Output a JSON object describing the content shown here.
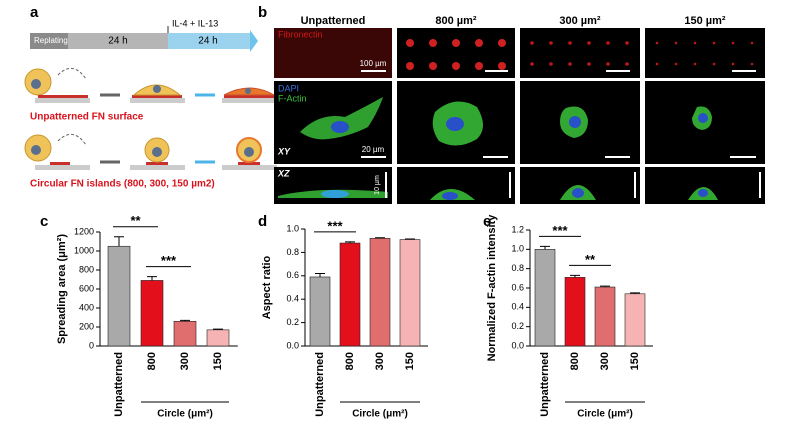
{
  "panel_a": {
    "label": "a",
    "timeline": [
      "Replating",
      "24 h",
      "24 h"
    ],
    "treatment": "IL-4 + IL-13",
    "captions": [
      "Unpatterned FN surface",
      "Circular FN islands (800, 300, 150 µm2)"
    ]
  },
  "panel_b": {
    "label": "b",
    "columns": [
      "Unpatterned",
      "800 µm²",
      "300 µm²",
      "150 µm²"
    ],
    "stains": [
      "Fibronectin",
      "DAPI",
      "F-Actin"
    ],
    "views": [
      "XY",
      "XZ"
    ],
    "scale_bars": [
      "100 µm",
      "20 µm",
      "10 µm"
    ]
  },
  "chart_data": [
    {
      "type": "bar",
      "panel_label": "c",
      "ylabel": "Spreading area (μm²)",
      "xlabel": "Circle (μm²)",
      "categories": [
        "Unpatterned",
        "800",
        "300",
        "150"
      ],
      "values": [
        1050,
        690,
        260,
        170
      ],
      "errors": [
        100,
        40,
        10,
        8
      ],
      "colors": [
        "#a9a9a9",
        "#e3101c",
        "#e06e6e",
        "#f6b3b3"
      ],
      "ylim": [
        0,
        1200
      ],
      "yticks": [
        0,
        200,
        400,
        600,
        800,
        1000,
        1200
      ],
      "annotations": [
        "**",
        "***"
      ]
    },
    {
      "type": "bar",
      "panel_label": "d",
      "ylabel": "Aspect ratio",
      "xlabel": "Circle (μm²)",
      "categories": [
        "Unpatterned",
        "800",
        "300",
        "150"
      ],
      "values": [
        0.59,
        0.88,
        0.92,
        0.91
      ],
      "errors": [
        0.03,
        0.01,
        0.005,
        0.005
      ],
      "colors": [
        "#a9a9a9",
        "#e3101c",
        "#e06e6e",
        "#f6b3b3"
      ],
      "ylim": [
        0,
        1.0
      ],
      "yticks": [
        {
          "value": 0,
          "label": "0.0"
        },
        0.2,
        0.4,
        0.6,
        0.8,
        {
          "value": 1,
          "label": "1.0"
        }
      ],
      "annotations": [
        "***"
      ]
    },
    {
      "type": "bar",
      "panel_label": "e",
      "ylabel": "Normalized F-actin intensity",
      "xlabel": "Circle (μm²)",
      "categories": [
        "Unpatterned",
        "800",
        "300",
        "150"
      ],
      "values": [
        1.0,
        0.71,
        0.61,
        0.54
      ],
      "errors": [
        0.03,
        0.02,
        0.01,
        0.01
      ],
      "colors": [
        "#a9a9a9",
        "#e3101c",
        "#e06e6e",
        "#f6b3b3"
      ],
      "ylim": [
        0,
        1.2
      ],
      "yticks": [
        {
          "value": 0,
          "label": "0.0"
        },
        0.2,
        0.4,
        0.6,
        0.8,
        {
          "value": 1,
          "label": "1.0"
        },
        1.2
      ],
      "annotations": [
        "***",
        "**"
      ]
    }
  ]
}
